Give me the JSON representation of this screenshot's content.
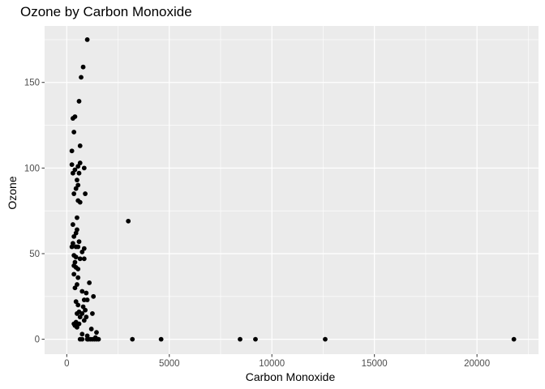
{
  "chart_data": {
    "type": "scatter",
    "title": "Ozone by Carbon Monoxide",
    "xlabel": "Carbon Monoxide",
    "ylabel": "Ozone",
    "xlim": [
      -1080,
      23000
    ],
    "ylim": [
      -8.7,
      183.0
    ],
    "xticks": [
      0,
      5000,
      10000,
      15000,
      20000
    ],
    "xtick_labels": [
      "0",
      "5000",
      "10000",
      "15000",
      "20000"
    ],
    "yticks": [
      0,
      50,
      100,
      150
    ],
    "ytick_labels": [
      "0",
      "50",
      "100",
      "150"
    ],
    "grid": true,
    "background": "#ebebeb",
    "grid_color": "#ffffff",
    "point_color": "#000000",
    "points": [
      {
        "x": 1000,
        "y": 175
      },
      {
        "x": 800,
        "y": 159
      },
      {
        "x": 700,
        "y": 153
      },
      {
        "x": 600,
        "y": 139
      },
      {
        "x": 400,
        "y": 130
      },
      {
        "x": 300,
        "y": 129
      },
      {
        "x": 350,
        "y": 121
      },
      {
        "x": 650,
        "y": 113
      },
      {
        "x": 250,
        "y": 110
      },
      {
        "x": 650,
        "y": 103
      },
      {
        "x": 250,
        "y": 102
      },
      {
        "x": 550,
        "y": 101
      },
      {
        "x": 850,
        "y": 100
      },
      {
        "x": 400,
        "y": 99
      },
      {
        "x": 300,
        "y": 97
      },
      {
        "x": 600,
        "y": 97
      },
      {
        "x": 500,
        "y": 93
      },
      {
        "x": 550,
        "y": 90
      },
      {
        "x": 450,
        "y": 88
      },
      {
        "x": 350,
        "y": 85
      },
      {
        "x": 900,
        "y": 85
      },
      {
        "x": 550,
        "y": 81
      },
      {
        "x": 650,
        "y": 80
      },
      {
        "x": 500,
        "y": 71
      },
      {
        "x": 3000,
        "y": 69
      },
      {
        "x": 300,
        "y": 67
      },
      {
        "x": 500,
        "y": 64
      },
      {
        "x": 450,
        "y": 62
      },
      {
        "x": 350,
        "y": 60
      },
      {
        "x": 600,
        "y": 57
      },
      {
        "x": 300,
        "y": 56
      },
      {
        "x": 250,
        "y": 54
      },
      {
        "x": 450,
        "y": 54
      },
      {
        "x": 550,
        "y": 54
      },
      {
        "x": 850,
        "y": 53
      },
      {
        "x": 750,
        "y": 51
      },
      {
        "x": 350,
        "y": 49
      },
      {
        "x": 450,
        "y": 48
      },
      {
        "x": 650,
        "y": 47
      },
      {
        "x": 850,
        "y": 47
      },
      {
        "x": 400,
        "y": 45
      },
      {
        "x": 350,
        "y": 43
      },
      {
        "x": 450,
        "y": 42
      },
      {
        "x": 550,
        "y": 41
      },
      {
        "x": 350,
        "y": 38
      },
      {
        "x": 550,
        "y": 36
      },
      {
        "x": 1100,
        "y": 33
      },
      {
        "x": 500,
        "y": 32
      },
      {
        "x": 400,
        "y": 30
      },
      {
        "x": 750,
        "y": 28
      },
      {
        "x": 950,
        "y": 27
      },
      {
        "x": 1300,
        "y": 25
      },
      {
        "x": 850,
        "y": 23
      },
      {
        "x": 1000,
        "y": 23
      },
      {
        "x": 450,
        "y": 22
      },
      {
        "x": 550,
        "y": 20
      },
      {
        "x": 800,
        "y": 19
      },
      {
        "x": 900,
        "y": 17
      },
      {
        "x": 600,
        "y": 16
      },
      {
        "x": 500,
        "y": 15
      },
      {
        "x": 750,
        "y": 15
      },
      {
        "x": 1250,
        "y": 15
      },
      {
        "x": 650,
        "y": 13
      },
      {
        "x": 950,
        "y": 13
      },
      {
        "x": 850,
        "y": 11
      },
      {
        "x": 450,
        "y": 10
      },
      {
        "x": 350,
        "y": 9
      },
      {
        "x": 600,
        "y": 9
      },
      {
        "x": 400,
        "y": 8
      },
      {
        "x": 500,
        "y": 7
      },
      {
        "x": 1200,
        "y": 6
      },
      {
        "x": 1450,
        "y": 4
      },
      {
        "x": 750,
        "y": 3
      },
      {
        "x": 1000,
        "y": 2
      },
      {
        "x": 1400,
        "y": 1
      },
      {
        "x": 650,
        "y": 0
      },
      {
        "x": 750,
        "y": 0
      },
      {
        "x": 1000,
        "y": 0
      },
      {
        "x": 1050,
        "y": 0
      },
      {
        "x": 1150,
        "y": 0
      },
      {
        "x": 1250,
        "y": 0
      },
      {
        "x": 1350,
        "y": 0
      },
      {
        "x": 1450,
        "y": 0
      },
      {
        "x": 1550,
        "y": 0
      },
      {
        "x": 3200,
        "y": 0
      },
      {
        "x": 4600,
        "y": 0
      },
      {
        "x": 8450,
        "y": 0
      },
      {
        "x": 9200,
        "y": 0
      },
      {
        "x": 12600,
        "y": 0
      },
      {
        "x": 21800,
        "y": 0
      }
    ]
  }
}
